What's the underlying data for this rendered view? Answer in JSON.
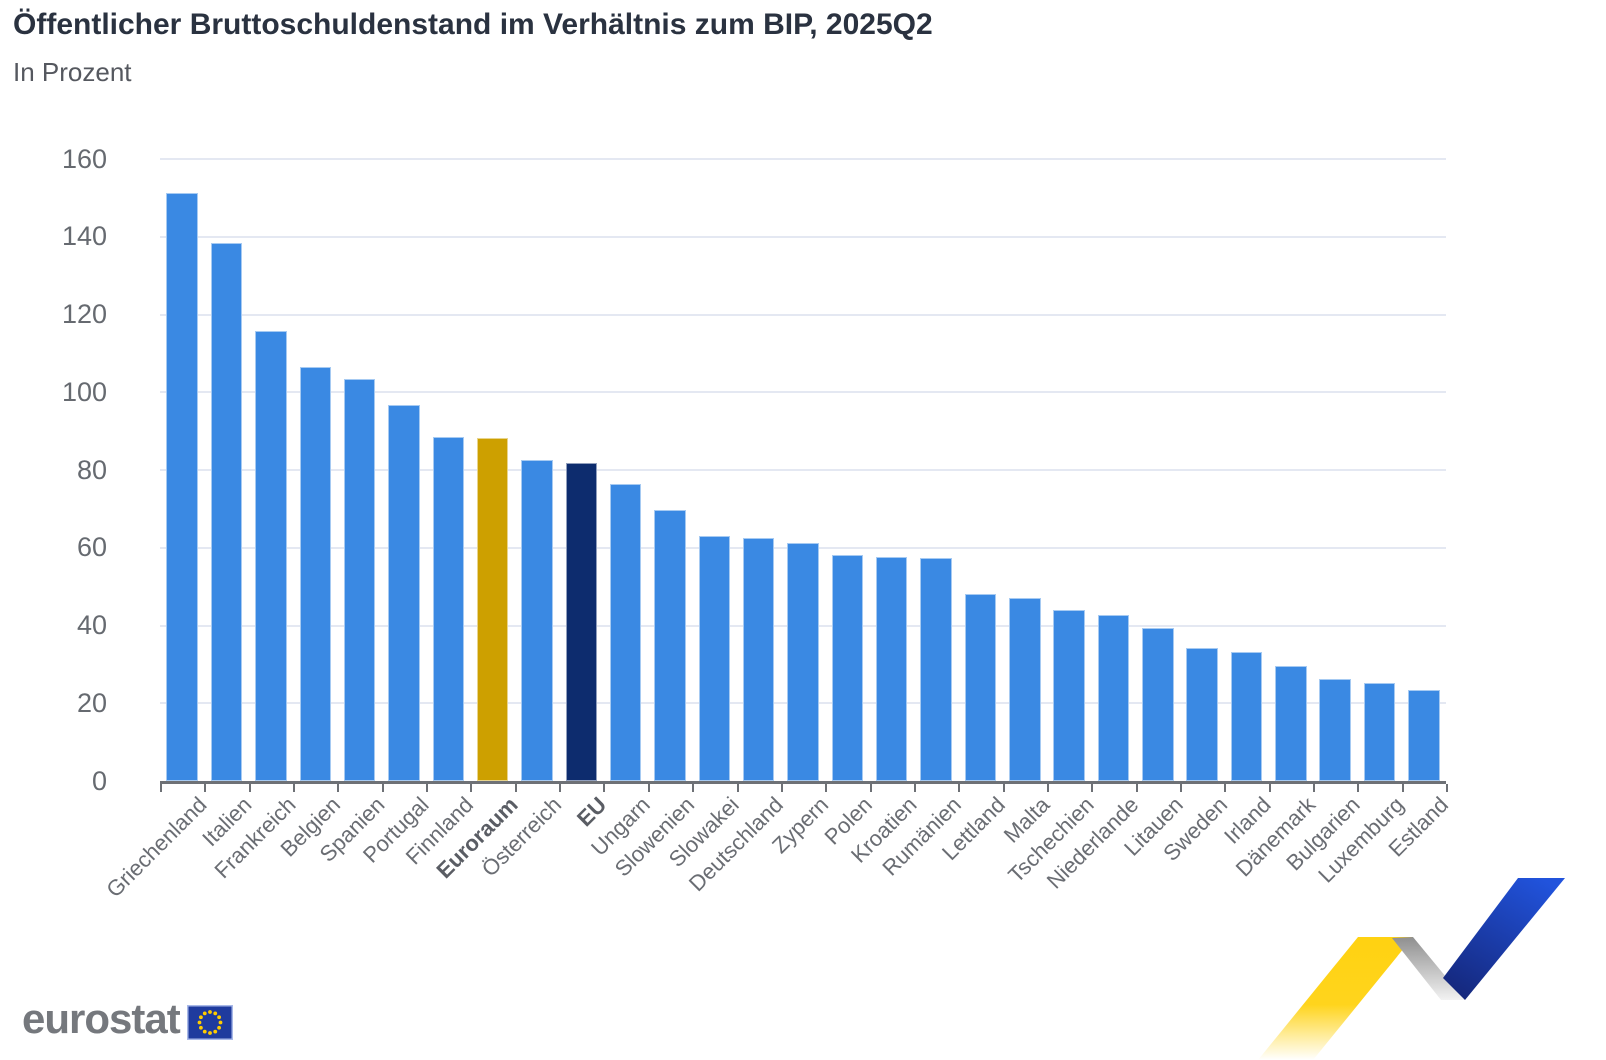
{
  "header": {
    "title": "Öffentlicher Bruttoschuldenstand im Verhältnis zum BIP, 2025Q2",
    "subtitle": "In Prozent"
  },
  "chart_data": {
    "type": "bar",
    "title": "Öffentlicher Bruttoschuldenstand im Verhältnis zum BIP, 2025Q2",
    "subtitle": "In Prozent",
    "xlabel": "",
    "ylabel": "",
    "ylim": [
      0,
      160
    ],
    "ytick_step": 20,
    "grid": true,
    "legend": false,
    "categories": [
      "Griechenland",
      "Italien",
      "Frankreich",
      "Belgien",
      "Spanien",
      "Portugal",
      "Finnland",
      "Euroraum",
      "Österreich",
      "EU",
      "Ungarn",
      "Slowenien",
      "Slowakei",
      "Deutschland",
      "Zypern",
      "Polen",
      "Kroatien",
      "Rumänien",
      "Lettland",
      "Malta",
      "Tschechien",
      "Niederlande",
      "Litauen",
      "Sweden",
      "Irland",
      "Dänemark",
      "Bulgarien",
      "Luxemburg",
      "Estland"
    ],
    "values": [
      151.2,
      138.3,
      115.8,
      106.4,
      103.4,
      96.8,
      88.5,
      88.2,
      82.5,
      81.9,
      76.4,
      69.8,
      63.0,
      62.6,
      61.2,
      58.1,
      57.7,
      57.4,
      48.2,
      47.0,
      43.9,
      42.8,
      39.3,
      34.1,
      33.3,
      29.7,
      26.3,
      25.1,
      23.4
    ],
    "default_bar_color": "#3A89E3",
    "emphasis": [
      {
        "category": "Euroraum",
        "color": "#CDA000",
        "bold_label": true
      },
      {
        "category": "EU",
        "color": "#0D2C6E",
        "bold_label": true
      }
    ]
  },
  "colors": {
    "grid": "#E4E8F2",
    "axis": "#6E7176",
    "y_tick_label": "#666A70",
    "x_tick_label": "#6A6D73",
    "title": "#2A3240",
    "subtitle": "#55585F"
  },
  "branding": {
    "logo_text": "eurostat",
    "flag_color": "#1F3B9E",
    "flag_border": "#A9B9E8",
    "star_color": "#FFCC00",
    "ribbon_yellow": "#FFD211",
    "ribbon_gray": "#8F8F8F",
    "ribbon_blue_bright": "#2153DC",
    "ribbon_blue_dark": "#15287D"
  }
}
